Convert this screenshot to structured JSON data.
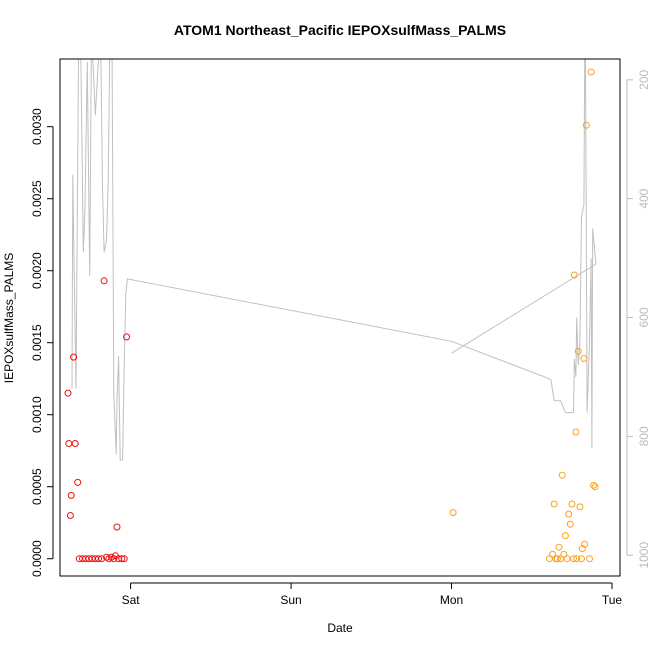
{
  "chart_data": {
    "type": "scatter",
    "title": "ATOM1 Northeast_Pacific IEPOXsulfMass_PALMS",
    "xlabel": "Date",
    "ylabel": "IEPOXsulfMass_PALMS",
    "x_ticks": [
      "Sat",
      "Sun",
      "Mon",
      "Tue"
    ],
    "x_tick_values": [
      1,
      2,
      3,
      4
    ],
    "xlim": [
      0.56,
      4.05
    ],
    "ylim": [
      -0.00012,
      0.00347
    ],
    "y_ticks": [
      0,
      0.0005,
      0.001,
      0.0015,
      0.002,
      0.0025,
      0.003
    ],
    "y_tick_labels": [
      "0.0000",
      "0.0005",
      "0.0010",
      "0.0015",
      "0.0020",
      "0.0025",
      "0.0030"
    ],
    "y2lim": [
      1035,
      165
    ],
    "y2_ticks": [
      200,
      400,
      600,
      800,
      1000
    ],
    "y2_tick_labels": [
      "200",
      "400",
      "600",
      "800",
      "1000"
    ],
    "colors": {
      "series_a": "#ee1111",
      "series_b": "#ff9f1a",
      "altitude": "#c0c0c0",
      "axis": "#000000",
      "axis2": "#bbbbbb"
    },
    "series": [
      {
        "color": "#ee1111",
        "points": [
          [
            0.61,
            0.00115
          ],
          [
            0.615,
            0.0008
          ],
          [
            0.625,
            0.0003
          ],
          [
            0.63,
            0.00044
          ],
          [
            0.645,
            0.0014
          ],
          [
            0.655,
            0.0008
          ],
          [
            0.67,
            0.00053
          ],
          [
            0.68,
            0.0
          ],
          [
            0.7,
            0.0
          ],
          [
            0.72,
            0.0
          ],
          [
            0.74,
            0.0
          ],
          [
            0.76,
            0.0
          ],
          [
            0.78,
            0.0
          ],
          [
            0.8,
            0.0
          ],
          [
            0.82,
            0.0
          ],
          [
            0.835,
            0.00193
          ],
          [
            0.85,
            1e-05
          ],
          [
            0.865,
            0.0
          ],
          [
            0.88,
            1e-05
          ],
          [
            0.895,
            0.0
          ],
          [
            0.905,
            2e-05
          ],
          [
            0.915,
            0.00022
          ],
          [
            0.925,
            0.0
          ],
          [
            0.945,
            0.0
          ],
          [
            0.96,
            0.0
          ],
          [
            0.975,
            0.00154
          ]
        ]
      },
      {
        "color": "#ff9f1a",
        "points": [
          [
            3.01,
            0.00032
          ],
          [
            3.61,
            0.0
          ],
          [
            3.63,
            3e-05
          ],
          [
            3.64,
            0.00038
          ],
          [
            3.65,
            0.0
          ],
          [
            3.66,
            0.0
          ],
          [
            3.67,
            8e-05
          ],
          [
            3.68,
            0.0
          ],
          [
            3.69,
            0.00058
          ],
          [
            3.7,
            3e-05
          ],
          [
            3.71,
            0.00016
          ],
          [
            3.72,
            0.0
          ],
          [
            3.73,
            0.00031
          ],
          [
            3.74,
            0.00024
          ],
          [
            3.75,
            0.00038
          ],
          [
            3.76,
            0.0
          ],
          [
            3.765,
            0.00197
          ],
          [
            3.775,
            0.00088
          ],
          [
            3.78,
            0.0
          ],
          [
            3.79,
            0.00144
          ],
          [
            3.8,
            0.00036
          ],
          [
            3.81,
            0.0
          ],
          [
            3.815,
            7e-05
          ],
          [
            3.825,
            0.00139
          ],
          [
            3.83,
            0.0001
          ],
          [
            3.84,
            0.00301
          ],
          [
            3.86,
            0.0
          ],
          [
            3.87,
            0.00338
          ],
          [
            3.885,
            0.00051
          ],
          [
            3.895,
            0.0005
          ]
        ]
      }
    ],
    "altitude_line": [
      [
        0.635,
        720
      ],
      [
        0.64,
        360
      ],
      [
        0.65,
        550
      ],
      [
        0.66,
        720
      ],
      [
        0.675,
        165
      ],
      [
        0.69,
        165
      ],
      [
        0.705,
        490
      ],
      [
        0.715,
        420
      ],
      [
        0.73,
        170
      ],
      [
        0.745,
        530
      ],
      [
        0.755,
        165
      ],
      [
        0.765,
        165
      ],
      [
        0.78,
        260
      ],
      [
        0.8,
        165
      ],
      [
        0.815,
        165
      ],
      [
        0.825,
        380
      ],
      [
        0.835,
        490
      ],
      [
        0.85,
        470
      ],
      [
        0.86,
        380
      ],
      [
        0.87,
        165
      ],
      [
        0.885,
        165
      ],
      [
        0.895,
        730
      ],
      [
        0.91,
        830
      ],
      [
        0.915,
        740
      ],
      [
        0.925,
        665
      ],
      [
        0.935,
        840
      ],
      [
        0.95,
        840
      ],
      [
        0.96,
        680
      ],
      [
        0.97,
        560
      ],
      [
        0.98,
        535
      ],
      [
        3.0,
        640
      ],
      [
        3.58,
        700
      ],
      [
        3.62,
        705
      ],
      [
        3.64,
        740
      ],
      [
        3.68,
        740
      ],
      [
        3.71,
        760
      ],
      [
        3.76,
        760
      ],
      [
        3.765,
        670
      ],
      [
        3.775,
        700
      ],
      [
        3.78,
        600
      ],
      [
        3.79,
        680
      ],
      [
        3.8,
        640
      ],
      [
        3.81,
        430
      ],
      [
        3.825,
        410
      ],
      [
        3.83,
        165
      ],
      [
        3.835,
        165
      ],
      [
        3.845,
        760
      ],
      [
        3.86,
        640
      ],
      [
        3.87,
        500
      ],
      [
        3.875,
        820
      ],
      [
        3.88,
        450
      ],
      [
        3.89,
        480
      ],
      [
        3.9,
        510
      ],
      [
        3.0,
        660
      ]
    ]
  }
}
